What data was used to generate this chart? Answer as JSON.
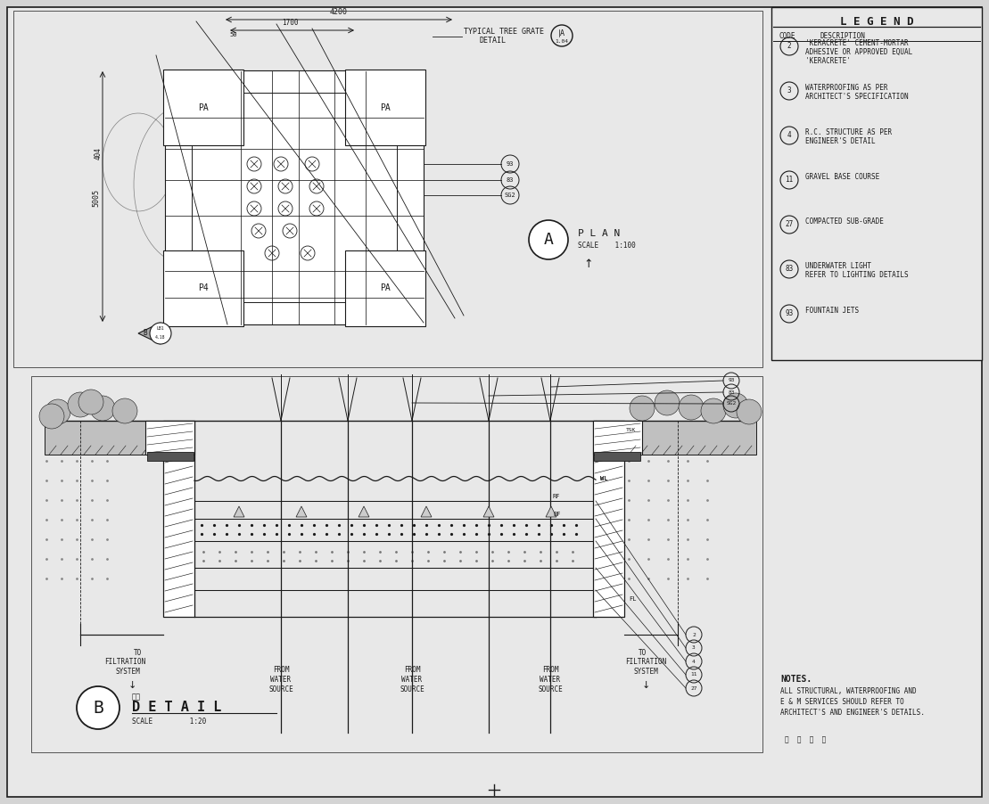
{
  "bg_color": "#d4d4d4",
  "drawing_bg": "#e8e8e8",
  "line_color": "#1a1a1a",
  "legend": {
    "title": "L E G E N D",
    "items": [
      {
        "code": "2",
        "lines": [
          "'KERACRETE' CEMENT-MORTAR",
          "ADHESIVE OR APPROVED EQUAL",
          "'KERACRETE'"
        ]
      },
      {
        "code": "3",
        "lines": [
          "WATERPROOFING AS PER",
          "ARCHITECT'S SPECIFICATION"
        ]
      },
      {
        "code": "4",
        "lines": [
          "R.C. STRUCTURE AS PER",
          "ENGINEER'S DETAIL"
        ]
      },
      {
        "code": "11",
        "lines": [
          "GRAVEL BASE COURSE"
        ]
      },
      {
        "code": "27",
        "lines": [
          "COMPACTED SUB-GRADE"
        ]
      },
      {
        "code": "83",
        "lines": [
          "UNDERWATER LIGHT",
          "REFER TO LIGHTING DETAILS"
        ]
      },
      {
        "code": "93",
        "lines": [
          "FOUNTAIN JETS"
        ]
      }
    ]
  },
  "plan_title": "P L A N",
  "plan_scale": "SCALE    1:100",
  "detail_title": "D E T A I L",
  "detail_scale": "SCALE         1:20",
  "detail_sub": "剖面",
  "typical_tree": "TYPICAL TREE GRATE",
  "typical_detail": "DETAIL",
  "notes_title": "NOTES.",
  "notes_lines": [
    "ALL STRUCTURAL, WATERPROOFING AND",
    "E & M SERVICES SHOULD REFER TO",
    "ARCHITECT'S AND ENGINEER'S DETAILS."
  ],
  "dim_4200": "4200",
  "dim_1700": "1700",
  "dim_50": "50",
  "dim_5005": "5005",
  "dim_404": "404"
}
